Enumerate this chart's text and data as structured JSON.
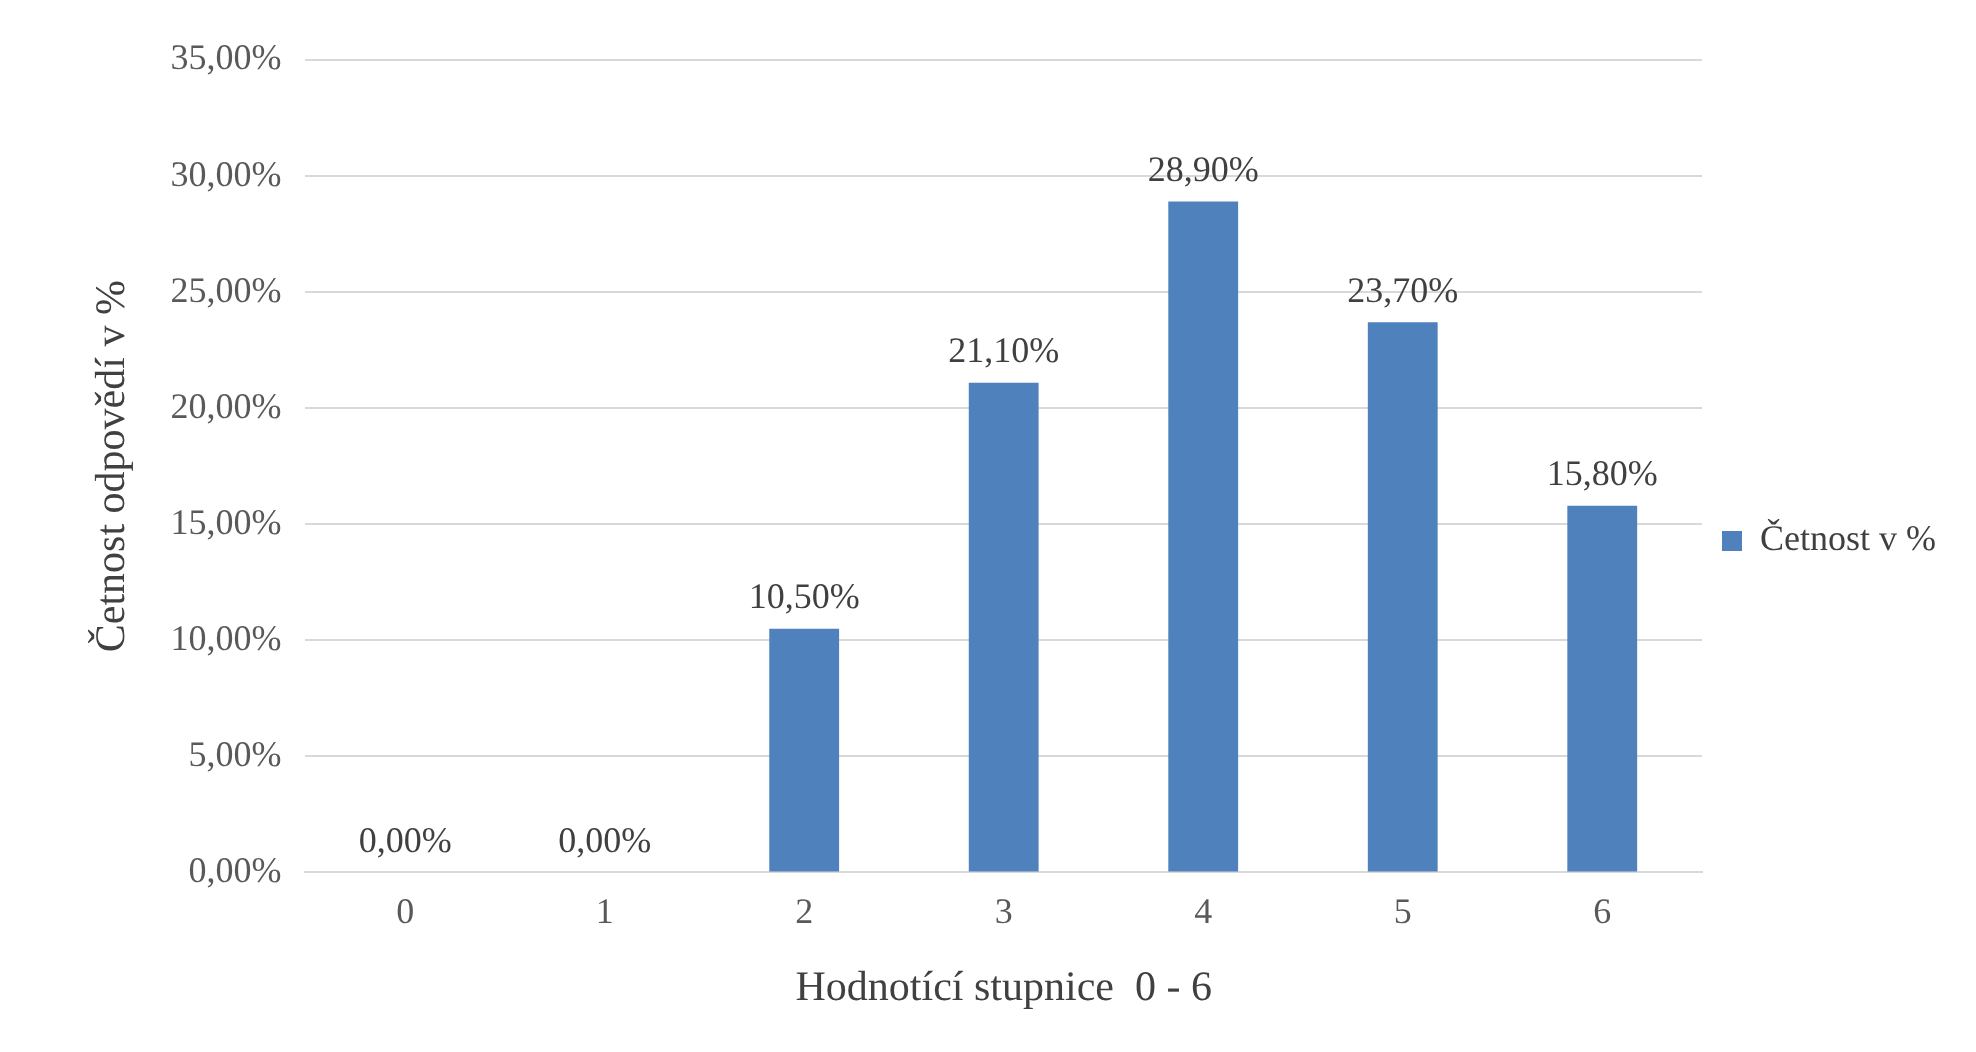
{
  "chart_data": {
    "type": "bar",
    "xlabel": "Hodnotící stupnice  0 - 6",
    "ylabel": "Četnost odpovědí v %",
    "categories": [
      "0",
      "1",
      "2",
      "3",
      "4",
      "5",
      "6"
    ],
    "series": [
      {
        "name": "Četnost v %",
        "color": "#4f81bd",
        "values": [
          0,
          0,
          10.5,
          21.1,
          28.9,
          23.7,
          15.8
        ],
        "value_labels": [
          "0,00%",
          "0,00%",
          "10,50%",
          "21,10%",
          "28,90%",
          "23,70%",
          "15,80%"
        ]
      }
    ],
    "ylim": [
      0,
      35
    ],
    "yticks": [
      {
        "value": 0,
        "label": "0,00%"
      },
      {
        "value": 5,
        "label": "5,00%"
      },
      {
        "value": 10,
        "label": "10,00%"
      },
      {
        "value": 15,
        "label": "15,00%"
      },
      {
        "value": 20,
        "label": "20,00%"
      },
      {
        "value": 25,
        "label": "25,00%"
      },
      {
        "value": 30,
        "label": "30,00%"
      },
      {
        "value": 35,
        "label": "35,00%"
      }
    ],
    "grid": "y",
    "legend": "right"
  }
}
